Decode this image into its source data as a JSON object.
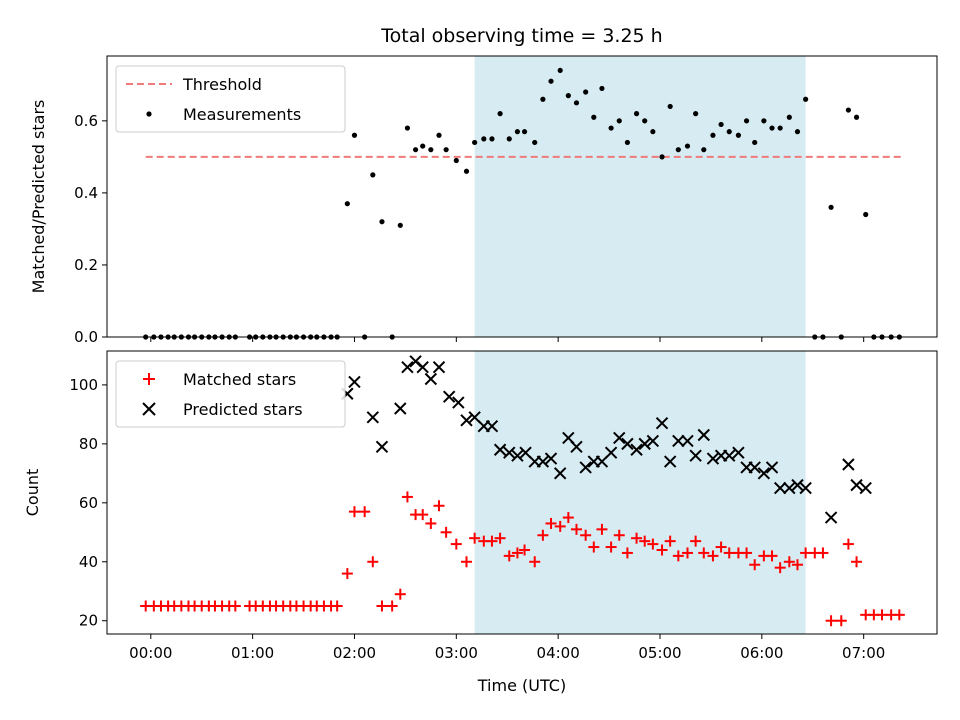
{
  "chart_data": {
    "title": "Total observing time = 3.25 h",
    "xlabel": "Time (UTC)",
    "x_ticks": [
      "00:00",
      "01:00",
      "02:00",
      "03:00",
      "04:00",
      "05:00",
      "06:00",
      "07:00"
    ],
    "xlim_hours": [
      -0.43,
      7.72
    ],
    "observing_window_hours": [
      3.18,
      6.43
    ],
    "colors": {
      "threshold": "#f07a7a",
      "measurements": "#000000",
      "matched": "#ff0000",
      "predicted": "#000000",
      "observing_window": "#add8e6"
    },
    "panels": [
      {
        "type": "scatter",
        "ylabel": "Matched/Predicted stars",
        "ylim": [
          0,
          0.78
        ],
        "y_ticks": [
          0.0,
          0.2,
          0.4,
          0.6
        ],
        "y_tick_labels": [
          "0.0",
          "0.2",
          "0.4",
          "0.6"
        ],
        "legend_position": "upper-left",
        "threshold": {
          "name": "Threshold",
          "value": 0.5,
          "x_range": [
            -0.05,
            7.37
          ]
        },
        "series": [
          {
            "name": "Measurements",
            "marker": "dot",
            "x": [
              -0.05,
              0.03,
              0.1,
              0.17,
              0.23,
              0.3,
              0.37,
              0.43,
              0.5,
              0.57,
              0.63,
              0.7,
              0.77,
              0.83,
              0.97,
              1.03,
              1.1,
              1.17,
              1.23,
              1.3,
              1.37,
              1.43,
              1.5,
              1.57,
              1.63,
              1.7,
              1.77,
              1.83,
              1.93,
              2.0,
              2.1,
              2.18,
              2.27,
              2.37,
              2.45,
              2.52,
              2.6,
              2.67,
              2.75,
              2.83,
              2.9,
              3.0,
              3.1,
              3.18,
              3.27,
              3.35,
              3.43,
              3.52,
              3.6,
              3.67,
              3.77,
              3.85,
              3.93,
              4.02,
              4.1,
              4.18,
              4.27,
              4.35,
              4.43,
              4.52,
              4.6,
              4.68,
              4.77,
              4.85,
              4.93,
              5.02,
              5.1,
              5.18,
              5.27,
              5.35,
              5.43,
              5.52,
              5.6,
              5.68,
              5.77,
              5.85,
              5.93,
              6.02,
              6.1,
              6.18,
              6.27,
              6.35,
              6.43,
              6.52,
              6.6,
              6.68,
              6.78,
              6.85,
              6.93,
              7.02,
              7.1,
              7.18,
              7.27,
              7.35
            ],
            "y": [
              0.0,
              0.0,
              0.0,
              0.0,
              0.0,
              0.0,
              0.0,
              0.0,
              0.0,
              0.0,
              0.0,
              0.0,
              0.0,
              0.0,
              0.0,
              0.0,
              0.0,
              0.0,
              0.0,
              0.0,
              0.0,
              0.0,
              0.0,
              0.0,
              0.0,
              0.0,
              0.0,
              0.0,
              0.37,
              0.56,
              0.0,
              0.45,
              0.32,
              0.0,
              0.31,
              0.58,
              0.52,
              0.53,
              0.52,
              0.56,
              0.52,
              0.49,
              0.46,
              0.54,
              0.55,
              0.55,
              0.62,
              0.55,
              0.57,
              0.57,
              0.54,
              0.66,
              0.71,
              0.74,
              0.67,
              0.65,
              0.68,
              0.61,
              0.69,
              0.58,
              0.6,
              0.54,
              0.62,
              0.6,
              0.57,
              0.5,
              0.64,
              0.52,
              0.53,
              0.62,
              0.52,
              0.56,
              0.59,
              0.57,
              0.56,
              0.6,
              0.54,
              0.6,
              0.58,
              0.58,
              0.61,
              0.57,
              0.66,
              0.0,
              0.0,
              0.36,
              0.0,
              0.63,
              0.61,
              0.34,
              0.0,
              0.0,
              0.0,
              0.0
            ]
          }
        ]
      },
      {
        "type": "scatter",
        "ylabel": "Count",
        "ylim": [
          15.5,
          111.5
        ],
        "y_ticks": [
          20,
          40,
          60,
          80,
          100
        ],
        "y_tick_labels": [
          "20",
          "40",
          "60",
          "80",
          "100"
        ],
        "legend_position": "upper-left",
        "series": [
          {
            "name": "Matched stars",
            "marker": "plus",
            "x": [
              -0.05,
              0.03,
              0.1,
              0.17,
              0.23,
              0.3,
              0.37,
              0.43,
              0.5,
              0.57,
              0.63,
              0.7,
              0.77,
              0.83,
              0.97,
              1.03,
              1.1,
              1.17,
              1.23,
              1.3,
              1.37,
              1.43,
              1.5,
              1.57,
              1.63,
              1.7,
              1.77,
              1.83,
              1.93,
              2.0,
              2.1,
              2.18,
              2.27,
              2.37,
              2.45,
              2.52,
              2.6,
              2.67,
              2.75,
              2.83,
              2.9,
              3.0,
              3.1,
              3.18,
              3.27,
              3.35,
              3.43,
              3.52,
              3.6,
              3.67,
              3.77,
              3.85,
              3.93,
              4.02,
              4.1,
              4.18,
              4.27,
              4.35,
              4.43,
              4.52,
              4.6,
              4.68,
              4.77,
              4.85,
              4.93,
              5.02,
              5.1,
              5.18,
              5.27,
              5.35,
              5.43,
              5.52,
              5.6,
              5.68,
              5.77,
              5.85,
              5.93,
              6.02,
              6.1,
              6.18,
              6.27,
              6.35,
              6.43,
              6.52,
              6.6,
              6.68,
              6.78,
              6.85,
              6.93,
              7.02,
              7.1,
              7.18,
              7.27,
              7.35
            ],
            "y": [
              25,
              25,
              25,
              25,
              25,
              25,
              25,
              25,
              25,
              25,
              25,
              25,
              25,
              25,
              25,
              25,
              25,
              25,
              25,
              25,
              25,
              25,
              25,
              25,
              25,
              25,
              25,
              25,
              36,
              57,
              57,
              40,
              25,
              25,
              29,
              62,
              56,
              56,
              53,
              59,
              50,
              46,
              40,
              48,
              47,
              47,
              48,
              42,
              43,
              44,
              40,
              49,
              53,
              52,
              55,
              51,
              49,
              45,
              51,
              45,
              49,
              43,
              48,
              47,
              46,
              44,
              47,
              42,
              43,
              47,
              43,
              42,
              45,
              43,
              43,
              43,
              39,
              42,
              42,
              38,
              40,
              39,
              43,
              43,
              43,
              20,
              20,
              46,
              40,
              22,
              22,
              22,
              22,
              22
            ]
          },
          {
            "name": "Predicted stars",
            "marker": "x",
            "x": [
              1.93,
              2.0,
              2.18,
              2.27,
              2.45,
              2.52,
              2.6,
              2.67,
              2.75,
              2.83,
              2.93,
              3.02,
              3.1,
              3.18,
              3.27,
              3.35,
              3.43,
              3.52,
              3.6,
              3.68,
              3.77,
              3.85,
              3.93,
              4.02,
              4.1,
              4.18,
              4.27,
              4.35,
              4.43,
              4.52,
              4.6,
              4.68,
              4.77,
              4.85,
              4.93,
              5.02,
              5.1,
              5.18,
              5.27,
              5.35,
              5.43,
              5.52,
              5.6,
              5.68,
              5.77,
              5.85,
              5.93,
              6.02,
              6.1,
              6.18,
              6.27,
              6.35,
              6.43,
              6.68,
              6.85,
              6.93,
              7.02
            ],
            "y": [
              97,
              101,
              89,
              79,
              92,
              106,
              108,
              106,
              102,
              106,
              96,
              94,
              88,
              89,
              86,
              86,
              78,
              77,
              76,
              77,
              74,
              74,
              75,
              70,
              82,
              79,
              72,
              74,
              74,
              77,
              82,
              80,
              78,
              80,
              81,
              87,
              74,
              81,
              81,
              76,
              83,
              75,
              76,
              76,
              77,
              72,
              72,
              70,
              72,
              65,
              65,
              66,
              65,
              55,
              73,
              66,
              65
            ]
          }
        ]
      }
    ]
  }
}
